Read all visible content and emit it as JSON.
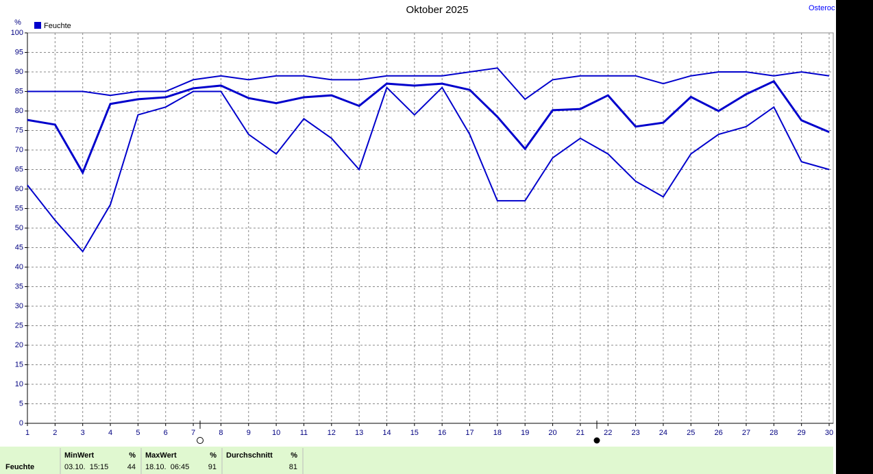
{
  "chart_data": {
    "type": "line",
    "title": "Oktober 2025",
    "station": "Osteroc",
    "y_label": "%",
    "x": [
      1,
      2,
      3,
      4,
      5,
      6,
      7,
      8,
      9,
      10,
      11,
      12,
      13,
      14,
      15,
      16,
      17,
      18,
      19,
      20,
      21,
      22,
      23,
      24,
      25,
      26,
      27,
      28,
      29,
      30
    ],
    "xlim": [
      1,
      30
    ],
    "xticks": [
      1,
      2,
      3,
      4,
      5,
      6,
      7,
      8,
      9,
      10,
      11,
      12,
      13,
      14,
      15,
      16,
      17,
      18,
      19,
      20,
      21,
      22,
      23,
      24,
      25,
      26,
      27,
      28,
      29,
      30
    ],
    "ylim": [
      0,
      100
    ],
    "yticks": [
      0,
      5,
      10,
      15,
      20,
      25,
      30,
      35,
      40,
      45,
      50,
      55,
      60,
      65,
      70,
      75,
      80,
      85,
      90,
      95,
      100
    ],
    "grid": true,
    "legend": "top-left",
    "series": [
      {
        "color": "#0000cc",
        "width": 2,
        "values": [
          85,
          85,
          85,
          84,
          85,
          85,
          88,
          89,
          88,
          89,
          89,
          88,
          88,
          89,
          89,
          89,
          90,
          91,
          83,
          88,
          89,
          89,
          89,
          87,
          89,
          90,
          90,
          89,
          90,
          89
        ]
      },
      {
        "name": "Feuchte",
        "color": "#0000cc",
        "width": 3,
        "values": [
          77.7,
          76.5,
          64.2,
          81.8,
          83,
          83.5,
          85.8,
          86.5,
          83.3,
          82,
          83.5,
          84,
          81.3,
          87,
          86.5,
          87,
          85.4,
          78.5,
          70.3,
          80.2,
          80.5,
          84,
          76,
          77,
          83.6,
          80,
          84.3,
          87.6,
          77.6,
          74.6
        ]
      },
      {
        "color": "#0000cc",
        "width": 2,
        "values": [
          61,
          52,
          44,
          56,
          79,
          81,
          85,
          85,
          74,
          69,
          78,
          73,
          65,
          86,
          79,
          86,
          74,
          57,
          57,
          68,
          73,
          69,
          62,
          58,
          69,
          74,
          76,
          81,
          67,
          65
        ]
      }
    ]
  },
  "summary": {
    "row_label": "Feuchte",
    "columns": [
      {
        "header": "MinWert",
        "unit": "%",
        "time": "03.10.  15:15",
        "value": 44
      },
      {
        "header": "MaxWert",
        "unit": "%",
        "time": "18.10.  06:45",
        "value": 91
      },
      {
        "header": "Durchschnitt",
        "unit": "%",
        "value": 81
      }
    ]
  }
}
